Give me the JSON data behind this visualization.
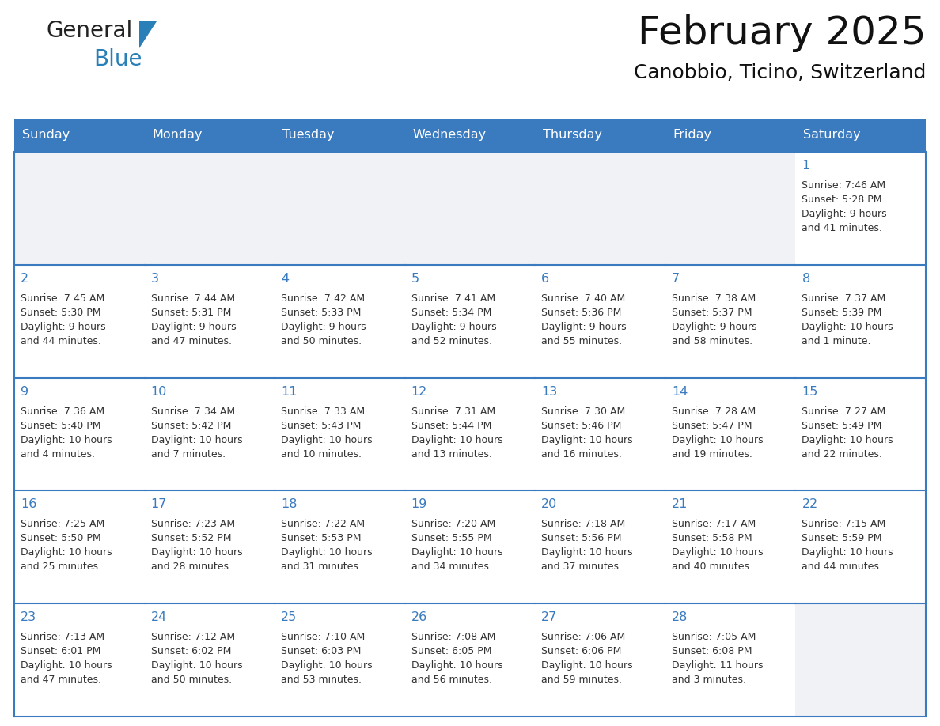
{
  "title": "February 2025",
  "subtitle": "Canobbio, Ticino, Switzerland",
  "header_bg": "#3a7abf",
  "header_text": "#ffffff",
  "cell_bg": "#ffffff",
  "cell_bg_empty_row0": "#f0f2f5",
  "grid_line_color": "#3a7abf",
  "text_color": "#333333",
  "date_color": "#3a7abf",
  "day_names": [
    "Sunday",
    "Monday",
    "Tuesday",
    "Wednesday",
    "Thursday",
    "Friday",
    "Saturday"
  ],
  "logo_color1": "#222222",
  "logo_color2": "#2980b9",
  "logo_triangle_color": "#2980b9",
  "days": [
    {
      "date": 1,
      "col": 6,
      "row": 0,
      "sunrise": "7:46 AM",
      "sunset": "5:28 PM",
      "daylight_line1": "Daylight: 9 hours",
      "daylight_line2": "and 41 minutes."
    },
    {
      "date": 2,
      "col": 0,
      "row": 1,
      "sunrise": "7:45 AM",
      "sunset": "5:30 PM",
      "daylight_line1": "Daylight: 9 hours",
      "daylight_line2": "and 44 minutes."
    },
    {
      "date": 3,
      "col": 1,
      "row": 1,
      "sunrise": "7:44 AM",
      "sunset": "5:31 PM",
      "daylight_line1": "Daylight: 9 hours",
      "daylight_line2": "and 47 minutes."
    },
    {
      "date": 4,
      "col": 2,
      "row": 1,
      "sunrise": "7:42 AM",
      "sunset": "5:33 PM",
      "daylight_line1": "Daylight: 9 hours",
      "daylight_line2": "and 50 minutes."
    },
    {
      "date": 5,
      "col": 3,
      "row": 1,
      "sunrise": "7:41 AM",
      "sunset": "5:34 PM",
      "daylight_line1": "Daylight: 9 hours",
      "daylight_line2": "and 52 minutes."
    },
    {
      "date": 6,
      "col": 4,
      "row": 1,
      "sunrise": "7:40 AM",
      "sunset": "5:36 PM",
      "daylight_line1": "Daylight: 9 hours",
      "daylight_line2": "and 55 minutes."
    },
    {
      "date": 7,
      "col": 5,
      "row": 1,
      "sunrise": "7:38 AM",
      "sunset": "5:37 PM",
      "daylight_line1": "Daylight: 9 hours",
      "daylight_line2": "and 58 minutes."
    },
    {
      "date": 8,
      "col": 6,
      "row": 1,
      "sunrise": "7:37 AM",
      "sunset": "5:39 PM",
      "daylight_line1": "Daylight: 10 hours",
      "daylight_line2": "and 1 minute."
    },
    {
      "date": 9,
      "col": 0,
      "row": 2,
      "sunrise": "7:36 AM",
      "sunset": "5:40 PM",
      "daylight_line1": "Daylight: 10 hours",
      "daylight_line2": "and 4 minutes."
    },
    {
      "date": 10,
      "col": 1,
      "row": 2,
      "sunrise": "7:34 AM",
      "sunset": "5:42 PM",
      "daylight_line1": "Daylight: 10 hours",
      "daylight_line2": "and 7 minutes."
    },
    {
      "date": 11,
      "col": 2,
      "row": 2,
      "sunrise": "7:33 AM",
      "sunset": "5:43 PM",
      "daylight_line1": "Daylight: 10 hours",
      "daylight_line2": "and 10 minutes."
    },
    {
      "date": 12,
      "col": 3,
      "row": 2,
      "sunrise": "7:31 AM",
      "sunset": "5:44 PM",
      "daylight_line1": "Daylight: 10 hours",
      "daylight_line2": "and 13 minutes."
    },
    {
      "date": 13,
      "col": 4,
      "row": 2,
      "sunrise": "7:30 AM",
      "sunset": "5:46 PM",
      "daylight_line1": "Daylight: 10 hours",
      "daylight_line2": "and 16 minutes."
    },
    {
      "date": 14,
      "col": 5,
      "row": 2,
      "sunrise": "7:28 AM",
      "sunset": "5:47 PM",
      "daylight_line1": "Daylight: 10 hours",
      "daylight_line2": "and 19 minutes."
    },
    {
      "date": 15,
      "col": 6,
      "row": 2,
      "sunrise": "7:27 AM",
      "sunset": "5:49 PM",
      "daylight_line1": "Daylight: 10 hours",
      "daylight_line2": "and 22 minutes."
    },
    {
      "date": 16,
      "col": 0,
      "row": 3,
      "sunrise": "7:25 AM",
      "sunset": "5:50 PM",
      "daylight_line1": "Daylight: 10 hours",
      "daylight_line2": "and 25 minutes."
    },
    {
      "date": 17,
      "col": 1,
      "row": 3,
      "sunrise": "7:23 AM",
      "sunset": "5:52 PM",
      "daylight_line1": "Daylight: 10 hours",
      "daylight_line2": "and 28 minutes."
    },
    {
      "date": 18,
      "col": 2,
      "row": 3,
      "sunrise": "7:22 AM",
      "sunset": "5:53 PM",
      "daylight_line1": "Daylight: 10 hours",
      "daylight_line2": "and 31 minutes."
    },
    {
      "date": 19,
      "col": 3,
      "row": 3,
      "sunrise": "7:20 AM",
      "sunset": "5:55 PM",
      "daylight_line1": "Daylight: 10 hours",
      "daylight_line2": "and 34 minutes."
    },
    {
      "date": 20,
      "col": 4,
      "row": 3,
      "sunrise": "7:18 AM",
      "sunset": "5:56 PM",
      "daylight_line1": "Daylight: 10 hours",
      "daylight_line2": "and 37 minutes."
    },
    {
      "date": 21,
      "col": 5,
      "row": 3,
      "sunrise": "7:17 AM",
      "sunset": "5:58 PM",
      "daylight_line1": "Daylight: 10 hours",
      "daylight_line2": "and 40 minutes."
    },
    {
      "date": 22,
      "col": 6,
      "row": 3,
      "sunrise": "7:15 AM",
      "sunset": "5:59 PM",
      "daylight_line1": "Daylight: 10 hours",
      "daylight_line2": "and 44 minutes."
    },
    {
      "date": 23,
      "col": 0,
      "row": 4,
      "sunrise": "7:13 AM",
      "sunset": "6:01 PM",
      "daylight_line1": "Daylight: 10 hours",
      "daylight_line2": "and 47 minutes."
    },
    {
      "date": 24,
      "col": 1,
      "row": 4,
      "sunrise": "7:12 AM",
      "sunset": "6:02 PM",
      "daylight_line1": "Daylight: 10 hours",
      "daylight_line2": "and 50 minutes."
    },
    {
      "date": 25,
      "col": 2,
      "row": 4,
      "sunrise": "7:10 AM",
      "sunset": "6:03 PM",
      "daylight_line1": "Daylight: 10 hours",
      "daylight_line2": "and 53 minutes."
    },
    {
      "date": 26,
      "col": 3,
      "row": 4,
      "sunrise": "7:08 AM",
      "sunset": "6:05 PM",
      "daylight_line1": "Daylight: 10 hours",
      "daylight_line2": "and 56 minutes."
    },
    {
      "date": 27,
      "col": 4,
      "row": 4,
      "sunrise": "7:06 AM",
      "sunset": "6:06 PM",
      "daylight_line1": "Daylight: 10 hours",
      "daylight_line2": "and 59 minutes."
    },
    {
      "date": 28,
      "col": 5,
      "row": 4,
      "sunrise": "7:05 AM",
      "sunset": "6:08 PM",
      "daylight_line1": "Daylight: 11 hours",
      "daylight_line2": "and 3 minutes."
    }
  ]
}
